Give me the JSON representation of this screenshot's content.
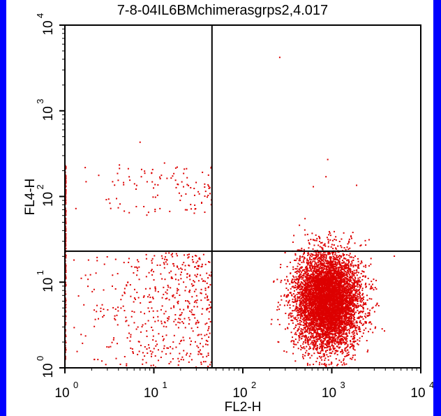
{
  "chart_data": {
    "type": "scatter",
    "title": "7-8-04IL6BMchimerasgrps2,4.017",
    "xlabel": "FL2-H",
    "ylabel": "FL4-H",
    "x_scale": "log",
    "y_scale": "log",
    "xlim": [
      1,
      10000
    ],
    "ylim": [
      1,
      10000
    ],
    "x_ticks": [
      {
        "value": 1,
        "base": "10",
        "exp": "0"
      },
      {
        "value": 10,
        "base": "10",
        "exp": "1"
      },
      {
        "value": 100,
        "base": "10",
        "exp": "2"
      },
      {
        "value": 1000,
        "base": "10",
        "exp": "3"
      },
      {
        "value": 10000,
        "base": "10",
        "exp": "4"
      }
    ],
    "y_ticks": [
      {
        "value": 1,
        "base": "10",
        "exp": "0"
      },
      {
        "value": 10,
        "base": "10",
        "exp": "1"
      },
      {
        "value": 100,
        "base": "10",
        "exp": "2"
      },
      {
        "value": 1000,
        "base": "10",
        "exp": "3"
      },
      {
        "value": 10000,
        "base": "10",
        "exp": "4"
      }
    ],
    "quadrant_gates": {
      "x": 45,
      "y": 23
    },
    "point_color": "#dd0000",
    "populations": [
      {
        "region": "lower-right",
        "x_center": 900,
        "y_center": 6,
        "x_spread_decades": 0.18,
        "y_spread_decades": 0.28,
        "count": 6500
      },
      {
        "region": "lower-left",
        "x_min": 1,
        "x_max": 45,
        "y_min": 1,
        "y_max": 22,
        "count": 520
      },
      {
        "region": "upper-left",
        "x_min": 1,
        "x_max": 45,
        "y_min": 60,
        "y_max": 250,
        "count": 110
      },
      {
        "region": "left-axis",
        "x": 1,
        "y_min": 1,
        "y_max": 230,
        "count": 260
      }
    ],
    "outliers": [
      {
        "x": 260,
        "y": 4200
      },
      {
        "x": 900,
        "y": 270
      },
      {
        "x": 860,
        "y": 170
      },
      {
        "x": 620,
        "y": 130
      },
      {
        "x": 1900,
        "y": 135
      },
      {
        "x": 7,
        "y": 430
      },
      {
        "x": 920,
        "y": 30
      }
    ]
  }
}
